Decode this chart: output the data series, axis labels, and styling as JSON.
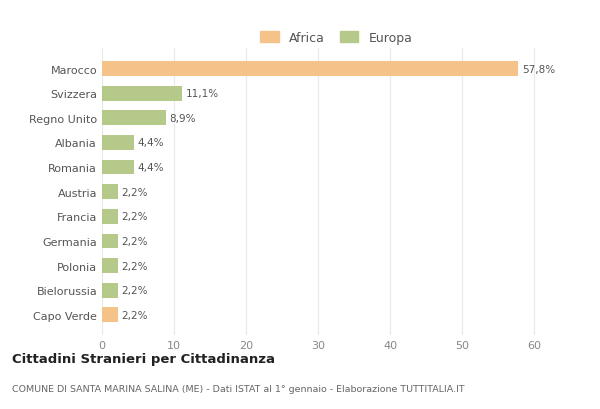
{
  "countries": [
    "Marocco",
    "Svizzera",
    "Regno Unito",
    "Albania",
    "Romania",
    "Austria",
    "Francia",
    "Germania",
    "Polonia",
    "Bielorussia",
    "Capo Verde"
  ],
  "values": [
    57.8,
    11.1,
    8.9,
    4.4,
    4.4,
    2.2,
    2.2,
    2.2,
    2.2,
    2.2,
    2.2
  ],
  "labels": [
    "57,8%",
    "11,1%",
    "8,9%",
    "4,4%",
    "4,4%",
    "2,2%",
    "2,2%",
    "2,2%",
    "2,2%",
    "2,2%",
    "2,2%"
  ],
  "colors": [
    "#f5c289",
    "#b5c98a",
    "#b5c98a",
    "#b5c98a",
    "#b5c98a",
    "#b5c98a",
    "#b5c98a",
    "#b5c98a",
    "#b5c98a",
    "#b5c98a",
    "#f5c289"
  ],
  "legend_labels": [
    "Africa",
    "Europa"
  ],
  "legend_colors": [
    "#f5c289",
    "#b5c98a"
  ],
  "title": "Cittadini Stranieri per Cittadinanza",
  "subtitle": "COMUNE DI SANTA MARINA SALINA (ME) - Dati ISTAT al 1° gennaio - Elaborazione TUTTITALIA.IT",
  "xlim": [
    0,
    65
  ],
  "xticks": [
    0,
    10,
    20,
    30,
    40,
    50,
    60
  ],
  "background_color": "#ffffff",
  "grid_color": "#e8e8e8"
}
